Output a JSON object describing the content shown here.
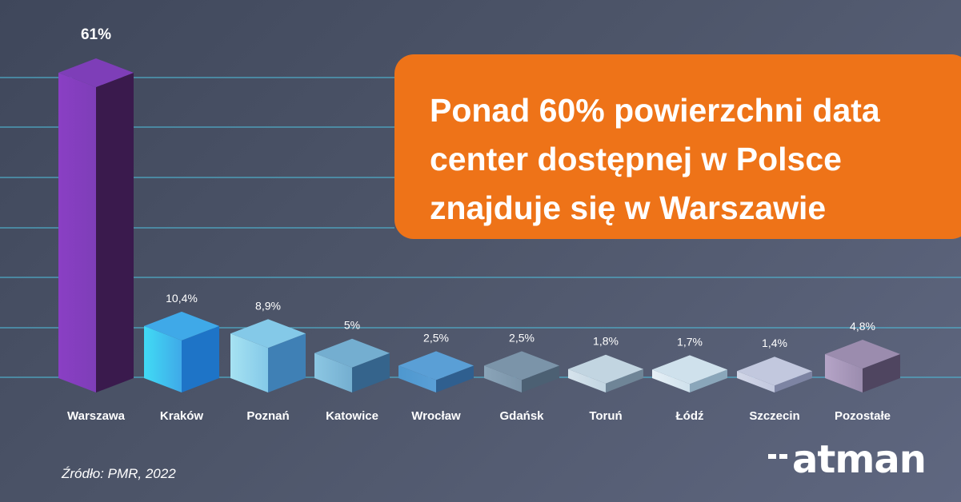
{
  "headline": {
    "line1": "Ponad 60% powierzchni data",
    "line2": "center dostępnej w Polsce",
    "line3": "znajduje się w Warszawie"
  },
  "source": "Źródło: PMR, 2022",
  "logo": {
    "text": "atman"
  },
  "colors": {
    "background": "#4d5569",
    "headline_box": "#ee7318",
    "gridline": "#4fb6d3",
    "text": "#ffffff"
  },
  "chart_data": {
    "type": "bar",
    "title": "",
    "xlabel": "",
    "ylabel": "",
    "grid": true,
    "categories": [
      "Warszawa",
      "Kraków",
      "Poznań",
      "Katowice",
      "Wrocław",
      "Gdańsk",
      "Toruń",
      "Łódź",
      "Szczecin",
      "Pozostałe"
    ],
    "values": [
      61,
      10.4,
      8.9,
      5,
      2.5,
      2.5,
      1.8,
      1.7,
      1.4,
      4.8
    ],
    "value_labels": [
      "61%",
      "10,4%",
      "8,9%",
      "5%",
      "2,5%",
      "2,5%",
      "1,8%",
      "1,7%",
      "1,4%",
      "4,8%"
    ],
    "bar_colors": [
      {
        "front": "#8a3fc4",
        "side": "#3a1a4d",
        "top": "#7e3eb8"
      },
      {
        "front": "#41dbf5",
        "side": "#1e74c7",
        "top": "#3fa9e8"
      },
      {
        "front": "#a6e2f2",
        "side": "#3f80b5",
        "top": "#84c9e8"
      },
      {
        "front": "#8cc7e3",
        "side": "#35648c",
        "top": "#74aed0"
      },
      {
        "front": "#4e98cf",
        "side": "#2f5f8f",
        "top": "#5a9fd6"
      },
      {
        "front": "#8aa4b8",
        "side": "#4c6073",
        "top": "#7b94a9"
      },
      {
        "front": "#d6e3ec",
        "side": "#6f8597",
        "top": "#c2d5e1"
      },
      {
        "front": "#e6f0f6",
        "side": "#8aa6ba",
        "top": "#cfe1ec"
      },
      {
        "front": "#d2d7e8",
        "side": "#7d84a3",
        "top": "#c2c8de"
      },
      {
        "front": "#b5a4c7",
        "side": "#4f4560",
        "top": "#9b8cae"
      }
    ]
  }
}
